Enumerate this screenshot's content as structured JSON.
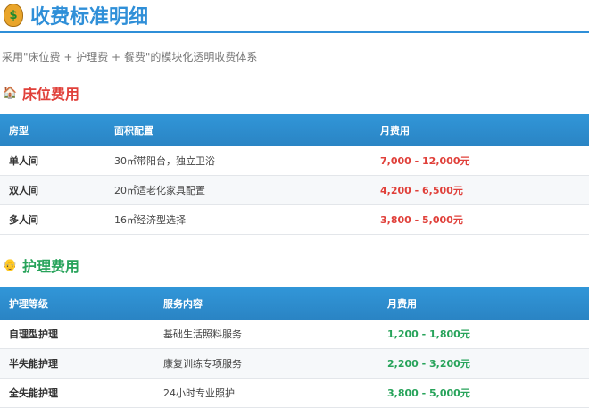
{
  "title": "收费标准明细",
  "subtitle": "采用\"床位费 + 护理费 + 餐费\"的模块化透明收费体系",
  "colors": {
    "accent": "#2f8fd8",
    "bed_price": "#e0403a",
    "care_price": "#27a35a"
  },
  "bed": {
    "heading": "床位费用",
    "icon": "house-icon",
    "headers": [
      "房型",
      "面积配置",
      "月费用"
    ],
    "rows": [
      [
        "单人间",
        "30㎡带阳台，独立卫浴",
        "7,000 - 12,000元"
      ],
      [
        "双人间",
        "20㎡适老化家具配置",
        "4,200 - 6,500元"
      ],
      [
        "多人间",
        "16㎡经济型选择",
        "3,800 - 5,000元"
      ]
    ]
  },
  "care": {
    "heading": "护理费用",
    "icon": "elder-face-icon",
    "headers": [
      "护理等级",
      "服务内容",
      "月费用"
    ],
    "rows": [
      [
        "自理型护理",
        "基础生活照料服务",
        "1,200 - 1,800元"
      ],
      [
        "半失能护理",
        "康复训练专项服务",
        "2,200 - 3,200元"
      ],
      [
        "全失能护理",
        "24小时专业照护",
        "3,800 - 5,000元"
      ]
    ]
  }
}
